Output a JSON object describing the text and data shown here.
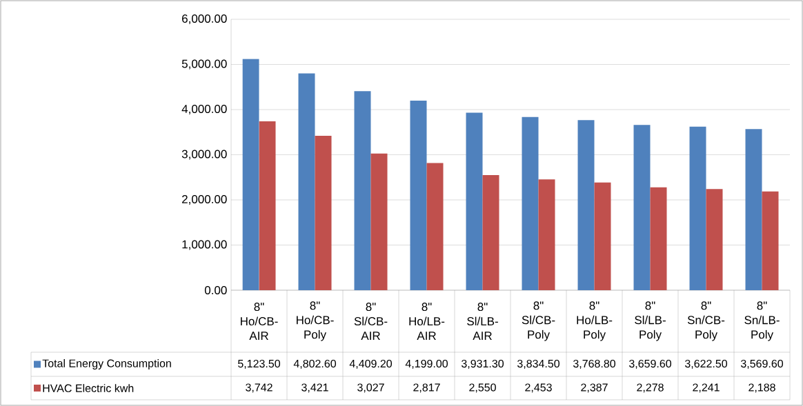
{
  "chart_data": {
    "type": "bar",
    "categories": [
      "8\" Ho/CB-AIR",
      "8\" Ho/CB-Poly",
      "8\" Sl/CB-AIR",
      "8\" Ho/LB-AIR",
      "8\" Sl/LB-AIR",
      "8\" Sl/CB-Poly",
      "8\" Ho/LB-Poly",
      "8\" Sl/LB-Poly",
      "8\" Sn/CB-Poly",
      "8\" Sn/LB-Poly"
    ],
    "series": [
      {
        "name": "Total Energy Consumption",
        "color": "#4f81bd",
        "values": [
          5123.5,
          4802.6,
          4409.2,
          4199.0,
          3931.3,
          3834.5,
          3768.8,
          3659.6,
          3622.5,
          3569.6
        ],
        "value_labels": [
          "5,123.50",
          "4,802.60",
          "4,409.20",
          "4,199.00",
          "3,931.30",
          "3,834.50",
          "3,768.80",
          "3,659.60",
          "3,622.50",
          "3,569.60"
        ]
      },
      {
        "name": "HVAC  Electric kwh",
        "color": "#c0504d",
        "values": [
          3742,
          3421,
          3027,
          2817,
          2550,
          2453,
          2387,
          2278,
          2241,
          2188
        ],
        "value_labels": [
          "3,742",
          "3,421",
          "3,027",
          "2,817",
          "2,550",
          "2,453",
          "2,387",
          "2,278",
          "2,241",
          "2,188"
        ]
      }
    ],
    "ylim": [
      0,
      6000
    ],
    "yticks": [
      {
        "value": 0,
        "label": "0.00"
      },
      {
        "value": 1000,
        "label": "1,000.00"
      },
      {
        "value": 2000,
        "label": "2,000.00"
      },
      {
        "value": 3000,
        "label": "3,000.00"
      },
      {
        "value": 4000,
        "label": "4,000.00"
      },
      {
        "value": 5000,
        "label": "5,000.00"
      },
      {
        "value": 6000,
        "label": "6,000.00"
      }
    ],
    "grid": "y",
    "legend": "bottom left"
  }
}
